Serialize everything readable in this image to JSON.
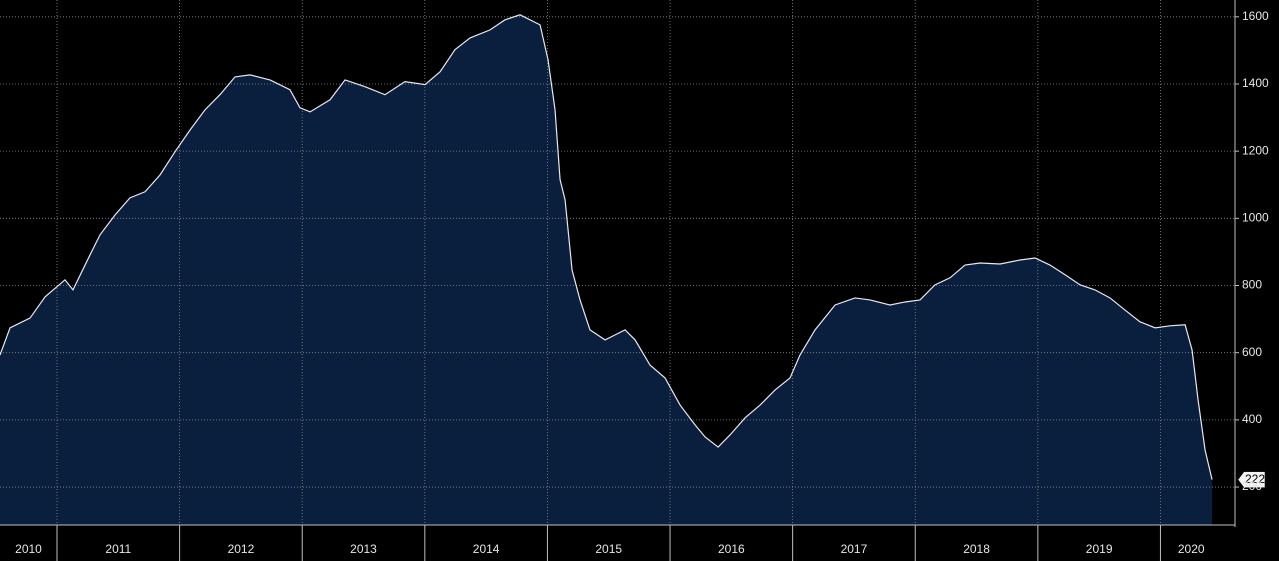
{
  "chart_data": {
    "type": "area",
    "color": "#0a1f3d",
    "line_color": "#e8e8f0",
    "grid": true,
    "x": [
      2010.535,
      2010.617,
      2010.78,
      2010.902,
      2011.065,
      2011.13,
      2011.269,
      2011.351,
      2011.473,
      2011.595,
      2011.718,
      2011.84,
      2011.962,
      2012.085,
      2012.207,
      2012.329,
      2012.452,
      2012.574,
      2012.737,
      2012.9,
      2012.982,
      2013.064,
      2013.227,
      2013.349,
      2013.512,
      2013.675,
      2013.838,
      2014.002,
      2014.124,
      2014.246,
      2014.369,
      2014.532,
      2014.654,
      2014.776,
      2014.94,
      2015.005,
      2015.062,
      2015.103,
      2015.144,
      2015.201,
      2015.266,
      2015.347,
      2015.47,
      2015.552,
      2015.633,
      2015.715,
      2015.837,
      2015.959,
      2016.082,
      2016.204,
      2016.286,
      2016.392,
      2016.489,
      2016.612,
      2016.734,
      2016.857,
      2016.979,
      2017.06,
      2017.183,
      2017.346,
      2017.509,
      2017.631,
      2017.794,
      2017.917,
      2018.039,
      2018.161,
      2018.284,
      2018.406,
      2018.528,
      2018.692,
      2018.855,
      2018.977,
      2019.099,
      2019.222,
      2019.344,
      2019.466,
      2019.589,
      2019.711,
      2019.833,
      2019.956,
      2020.078,
      2020.201,
      2020.258,
      2020.307,
      2020.364,
      2020.421
    ],
    "values": [
      593,
      674,
      703,
      766,
      817,
      787,
      891,
      951,
      1010,
      1061,
      1079,
      1129,
      1198,
      1263,
      1323,
      1368,
      1421,
      1427,
      1412,
      1383,
      1329,
      1317,
      1353,
      1412,
      1392,
      1368,
      1407,
      1398,
      1436,
      1502,
      1537,
      1561,
      1591,
      1606,
      1576,
      1472,
      1323,
      1115,
      1055,
      846,
      757,
      668,
      638,
      653,
      668,
      638,
      563,
      525,
      444,
      385,
      349,
      319,
      355,
      406,
      444,
      489,
      525,
      593,
      668,
      742,
      763,
      757,
      742,
      751,
      757,
      802,
      823,
      861,
      867,
      864,
      876,
      882,
      861,
      832,
      802,
      787,
      763,
      727,
      692,
      674,
      680,
      683,
      608,
      459,
      310,
      222
    ],
    "xlim": [
      2010.535,
      2020.502
    ],
    "xticks": [
      {
        "value": 2010,
        "label": "2010"
      },
      {
        "value": 2011,
        "label": "2011"
      },
      {
        "value": 2012,
        "label": "2012"
      },
      {
        "value": 2013,
        "label": "2013"
      },
      {
        "value": 2014,
        "label": "2014"
      },
      {
        "value": 2015,
        "label": "2015"
      },
      {
        "value": 2016,
        "label": "2016"
      },
      {
        "value": 2017,
        "label": "2017"
      },
      {
        "value": 2018,
        "label": "2018"
      },
      {
        "value": 2019,
        "label": "2019"
      },
      {
        "value": 2020,
        "label": "2020"
      }
    ],
    "ylim": [
      87,
      1650
    ],
    "yticks": [
      200,
      400,
      600,
      800,
      1000,
      1200,
      1400,
      1600
    ]
  }
}
